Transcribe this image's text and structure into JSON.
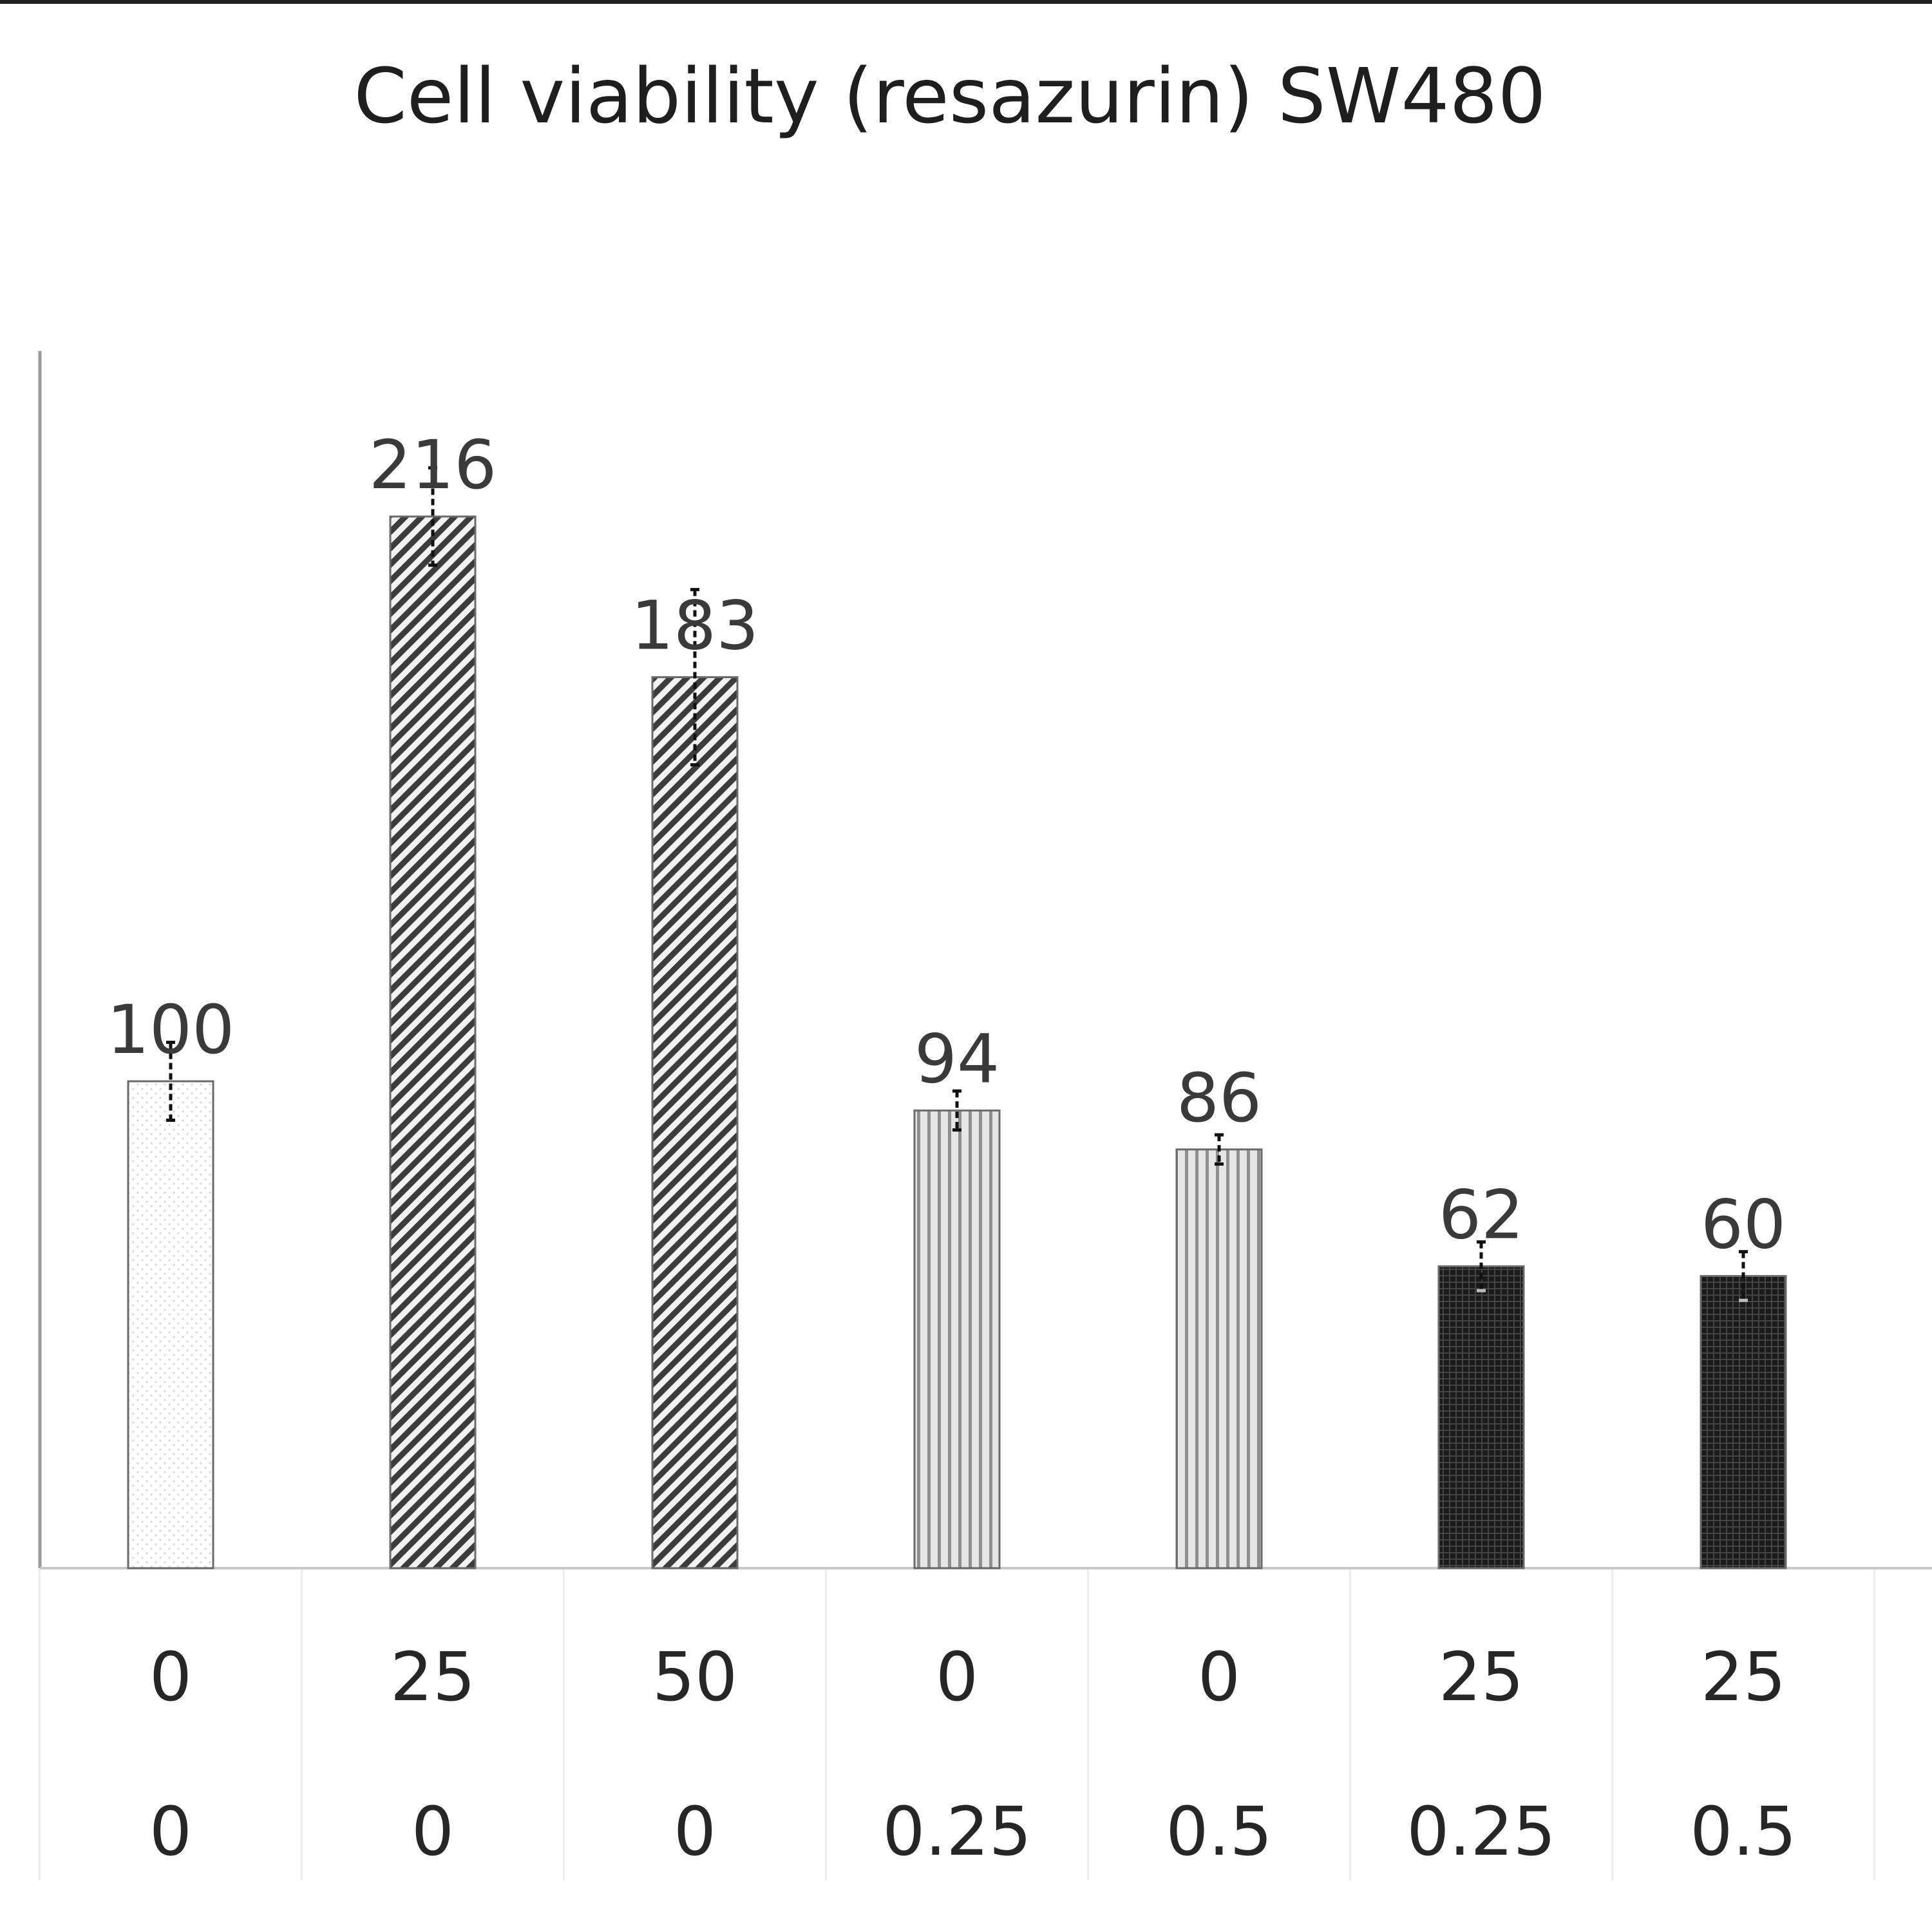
{
  "chart_data": {
    "type": "bar",
    "title": "Cell viability (resazurin) SW480",
    "xlabel": "",
    "ylabel": "",
    "ylim": [
      0,
      250
    ],
    "grid": false,
    "legend": "none",
    "categories_row1": [
      "0",
      "25",
      "50",
      "0",
      "0",
      "25",
      "25"
    ],
    "categories_row2": [
      "0",
      "0",
      "0",
      "0.25",
      "0.5",
      "0.25",
      "0.5"
    ],
    "values": [
      100,
      216,
      183,
      94,
      86,
      62,
      60
    ],
    "data_labels": [
      "100",
      "216",
      "183",
      "94",
      "86",
      "62",
      "60"
    ],
    "error_bars": [
      8,
      10,
      18,
      4,
      3,
      5,
      5
    ],
    "fill_patterns": [
      "dotted-white",
      "diagonal-hatch",
      "diagonal-hatch",
      "vertical-stripes",
      "vertical-stripes",
      "dark-grid",
      "dark-grid"
    ]
  }
}
